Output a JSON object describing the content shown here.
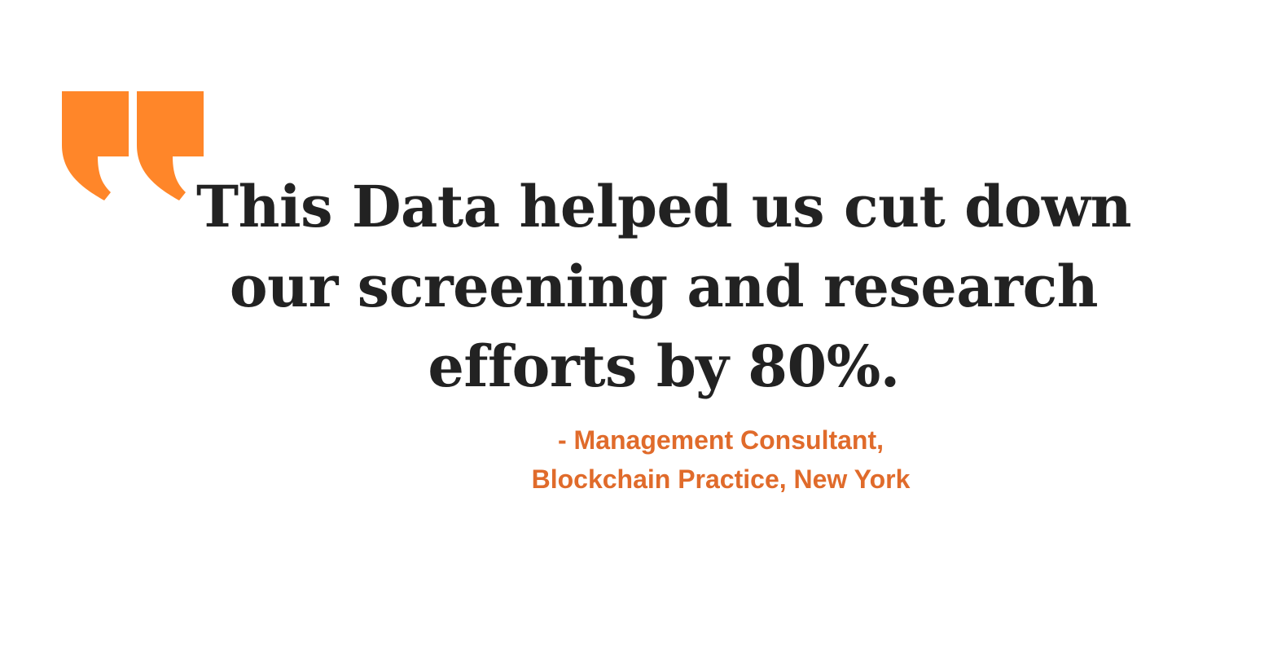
{
  "colors": {
    "accent": "#ff8629",
    "quote_text": "#222222",
    "attribution_text": "#e06b2b",
    "background": "#ffffff"
  },
  "icon": "quotation-mark-icon",
  "quote": {
    "lines": [
      "This Data helped us cut down",
      "our screening and research",
      "efforts by 80%."
    ]
  },
  "attribution": {
    "lines": [
      "- Management Consultant,",
      "Blockchain Practice, New York"
    ]
  }
}
